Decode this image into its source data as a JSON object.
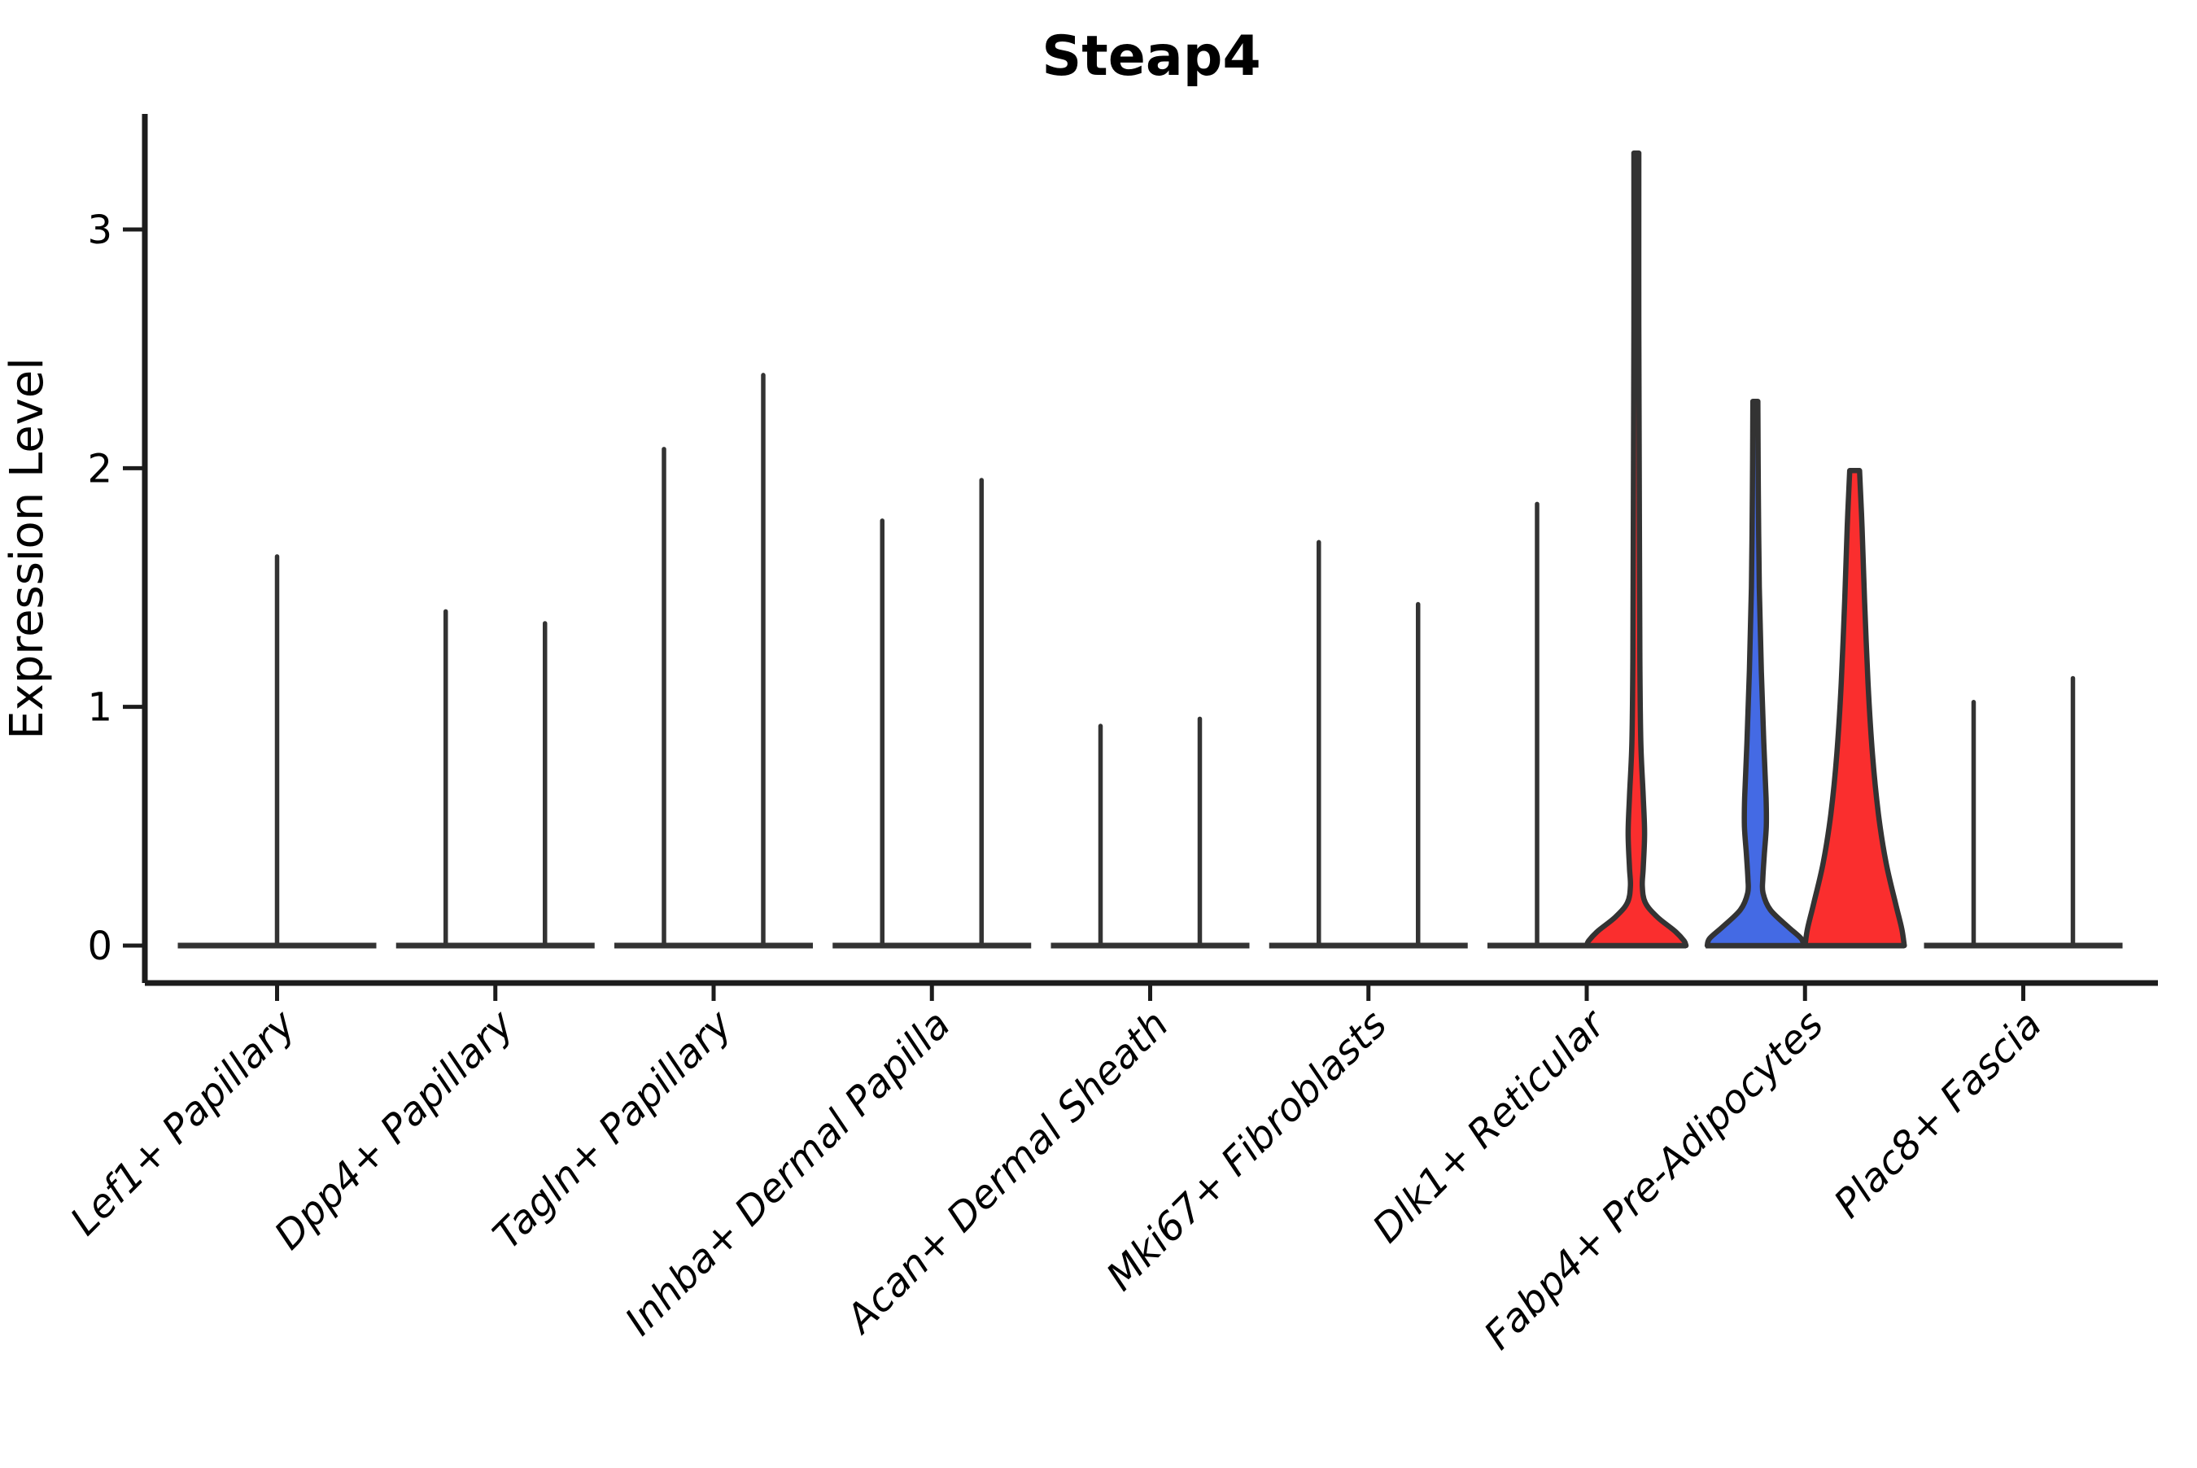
{
  "title": "Steap4",
  "axes": {
    "ylabel": "Expression Level",
    "ytick_labels": [
      "0",
      "1",
      "2",
      "3"
    ]
  },
  "colors": {
    "red_fill": "#FA2E2E",
    "blue_fill": "#446AE4",
    "violin_outline": "#333333",
    "axis_line": "#1C1C1C",
    "text": "#000000",
    "background": "#ffffff"
  },
  "chart_data": {
    "type": "violin",
    "title": "Steap4",
    "xlabel": "",
    "ylabel": "Expression Level",
    "yticks": [
      0,
      1,
      2,
      3
    ],
    "ylim": [
      -0.16,
      3.48
    ],
    "grid": false,
    "legend_position": "none",
    "categories": [
      "Lef1+ Papillary",
      "Dpp4+ Papillary",
      "Tagln+ Papillary",
      "Inhba+ Dermal Papilla",
      "Acan+ Dermal Sheath",
      "Mki67+ Fibroblasts",
      "Dlk1+ Reticular",
      "Fabp4+ Pre-Adipocytes",
      "Plac8+ Fascia"
    ],
    "violins": [
      {
        "category_index": 0,
        "category": "Lef1+ Papillary",
        "position": 0,
        "max_expression": 1.63,
        "style": "spike",
        "fill": null,
        "width_scale": 2
      },
      {
        "category_index": 1,
        "category": "Dpp4+ Papillary",
        "position": -1,
        "max_expression": 1.4,
        "style": "spike",
        "fill": null,
        "width_scale": 1
      },
      {
        "category_index": 1,
        "category": "Dpp4+ Papillary",
        "position": 1,
        "max_expression": 1.35,
        "style": "spike",
        "fill": null,
        "width_scale": 1
      },
      {
        "category_index": 2,
        "category": "Tagln+ Papillary",
        "position": -1,
        "max_expression": 2.08,
        "style": "spike",
        "fill": null,
        "width_scale": 1
      },
      {
        "category_index": 2,
        "category": "Tagln+ Papillary",
        "position": 1,
        "max_expression": 2.39,
        "style": "spike",
        "fill": null,
        "width_scale": 1
      },
      {
        "category_index": 3,
        "category": "Inhba+ Dermal Papilla",
        "position": -1,
        "max_expression": 1.78,
        "style": "spike",
        "fill": null,
        "width_scale": 1
      },
      {
        "category_index": 3,
        "category": "Inhba+ Dermal Papilla",
        "position": 1,
        "max_expression": 1.95,
        "style": "spike",
        "fill": null,
        "width_scale": 1
      },
      {
        "category_index": 4,
        "category": "Acan+ Dermal Sheath",
        "position": -1,
        "max_expression": 0.92,
        "style": "spike",
        "fill": null,
        "width_scale": 1
      },
      {
        "category_index": 4,
        "category": "Acan+ Dermal Sheath",
        "position": 1,
        "max_expression": 0.95,
        "style": "spike",
        "fill": null,
        "width_scale": 1
      },
      {
        "category_index": 5,
        "category": "Mki67+ Fibroblasts",
        "position": -1,
        "max_expression": 1.69,
        "style": "spike",
        "fill": null,
        "width_scale": 1
      },
      {
        "category_index": 5,
        "category": "Mki67+ Fibroblasts",
        "position": 1,
        "max_expression": 1.43,
        "style": "spike",
        "fill": null,
        "width_scale": 1
      },
      {
        "category_index": 6,
        "category": "Dlk1+ Reticular",
        "position": -1,
        "max_expression": 1.85,
        "style": "spike",
        "fill": null,
        "width_scale": 1
      },
      {
        "category_index": 6,
        "category": "Dlk1+ Reticular",
        "position": 1,
        "max_expression": 3.32,
        "style": "shaped",
        "fill": "red",
        "density_profile": [
          [
            3.32,
            0.05
          ],
          [
            2.6,
            0.05
          ],
          [
            1.8,
            0.06
          ],
          [
            1.2,
            0.07
          ],
          [
            0.85,
            0.09
          ],
          [
            0.62,
            0.14
          ],
          [
            0.47,
            0.165
          ],
          [
            0.33,
            0.14
          ],
          [
            0.25,
            0.12
          ],
          [
            0.18,
            0.18
          ],
          [
            0.12,
            0.42
          ],
          [
            0.06,
            0.78
          ],
          [
            0.02,
            0.96
          ],
          [
            0.0,
            1.0
          ]
        ],
        "width_scale": 1
      },
      {
        "category_index": 7,
        "category": "Fabp4+ Pre-Adipocytes",
        "position": -1,
        "max_expression": 2.28,
        "style": "shaped",
        "fill": "blue",
        "density_profile": [
          [
            2.28,
            0.05
          ],
          [
            1.9,
            0.06
          ],
          [
            1.5,
            0.08
          ],
          [
            1.15,
            0.12
          ],
          [
            0.85,
            0.17
          ],
          [
            0.62,
            0.215
          ],
          [
            0.5,
            0.22
          ],
          [
            0.38,
            0.18
          ],
          [
            0.28,
            0.15
          ],
          [
            0.22,
            0.155
          ],
          [
            0.15,
            0.3
          ],
          [
            0.08,
            0.65
          ],
          [
            0.03,
            0.92
          ],
          [
            0.0,
            0.97
          ]
        ],
        "width_scale": 1
      },
      {
        "category_index": 7,
        "category": "Fabp4+ Pre-Adipocytes",
        "position": 1,
        "max_expression": 1.99,
        "style": "shaped",
        "fill": "red",
        "density_profile": [
          [
            1.99,
            0.1
          ],
          [
            1.75,
            0.15
          ],
          [
            1.45,
            0.2
          ],
          [
            1.1,
            0.27
          ],
          [
            0.8,
            0.36
          ],
          [
            0.55,
            0.48
          ],
          [
            0.35,
            0.63
          ],
          [
            0.18,
            0.82
          ],
          [
            0.07,
            0.95
          ],
          [
            0.0,
            1.0
          ]
        ],
        "width_scale": 1
      },
      {
        "category_index": 8,
        "category": "Plac8+ Fascia",
        "position": -1,
        "max_expression": 1.02,
        "style": "spike",
        "fill": null,
        "width_scale": 1
      },
      {
        "category_index": 8,
        "category": "Plac8+ Fascia",
        "position": 1,
        "max_expression": 1.12,
        "style": "spike",
        "fill": null,
        "width_scale": 1
      }
    ]
  }
}
